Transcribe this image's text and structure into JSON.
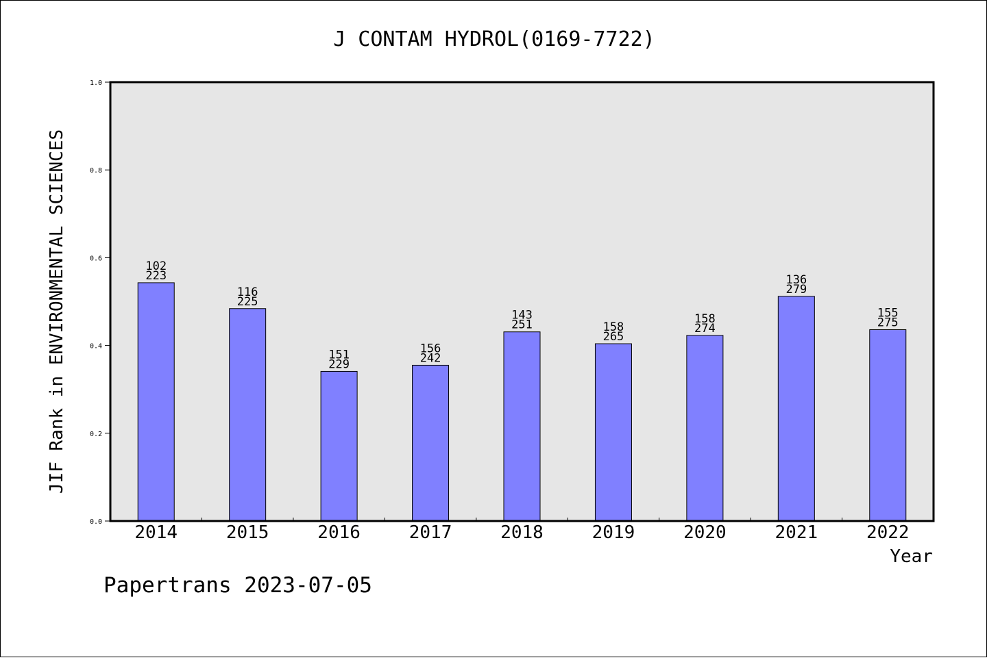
{
  "chart_data": {
    "type": "bar",
    "title": "J CONTAM HYDROL(0169-7722)",
    "xlabel": "Year",
    "ylabel": "JIF Rank in ENVIRONMENTAL SCIENCES",
    "categories": [
      "2014",
      "2015",
      "2016",
      "2017",
      "2018",
      "2019",
      "2020",
      "2021",
      "2022"
    ],
    "values": [
      0.543,
      0.484,
      0.341,
      0.355,
      0.431,
      0.404,
      0.423,
      0.512,
      0.436
    ],
    "rank_labels": [
      "102",
      "116",
      "151",
      "156",
      "143",
      "158",
      "158",
      "136",
      "155"
    ],
    "total_labels": [
      "223",
      "225",
      "229",
      "242",
      "251",
      "265",
      "274",
      "279",
      "275"
    ],
    "ylim": [
      0,
      1.0
    ],
    "yticks": [
      "0.0",
      "0.2",
      "0.4",
      "0.6",
      "0.8",
      "1.0"
    ],
    "grid": false,
    "colors": {
      "bar": "#8080ff",
      "plot_background": "#e6e6e6"
    }
  },
  "footer": {
    "text": "Papertrans 2023-07-05"
  }
}
